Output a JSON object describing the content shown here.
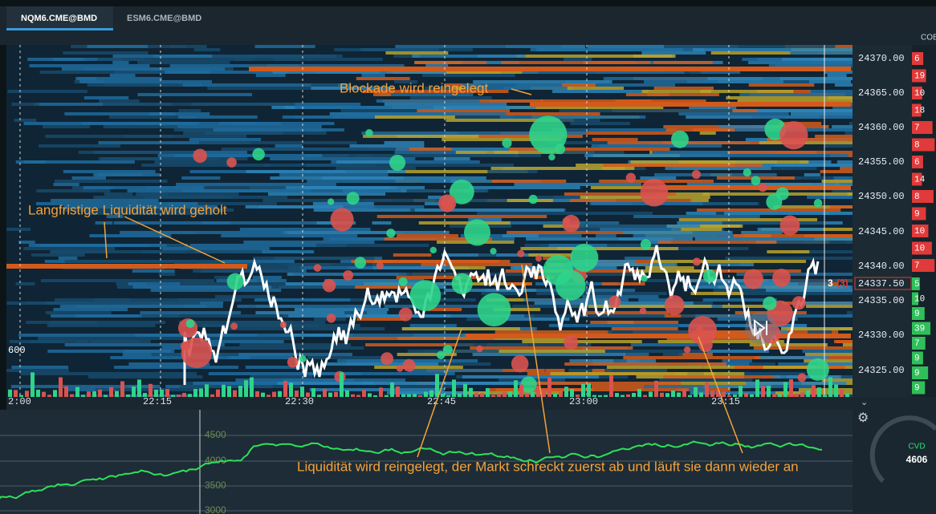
{
  "tabs": [
    "NQM6.CME@BMD",
    "ESM6.CME@BMD"
  ],
  "cob_header": "COB",
  "price_axis": {
    "labels": [
      "24370.00",
      "24365.00",
      "24360.00",
      "24355.00",
      "24350.00",
      "24345.00",
      "24340.00",
      "24335.00",
      "24330.00",
      "24325.00"
    ]
  },
  "current_price": {
    "size": "3",
    "size_detail": "(3)",
    "label": "24337.50"
  },
  "time_axis": {
    "labels": [
      "2:00",
      "22:15",
      "22:30",
      "22:45",
      "23:00",
      "23:15"
    ]
  },
  "volume_label": "600",
  "lower_axis": {
    "labels": [
      "4500",
      "4000",
      "3500",
      "3000"
    ]
  },
  "annotations": [
    "Blockade wird reingelegt",
    "Langfristige Liquidität wird geholt",
    "Liquidität wird reingelegt, der Markt schreckt zuerst ab und läuft sie dann wieder an"
  ],
  "order_book": {
    "asks": [
      "6",
      "19",
      "10",
      "18",
      "7",
      "8",
      "6",
      "14",
      "8",
      "9",
      "10",
      "10",
      "7"
    ],
    "bids": [
      "5",
      "10",
      "9",
      "39",
      "7",
      "9",
      "9",
      "9"
    ]
  },
  "cvd": {
    "label": "CVD",
    "value": "4606"
  }
}
